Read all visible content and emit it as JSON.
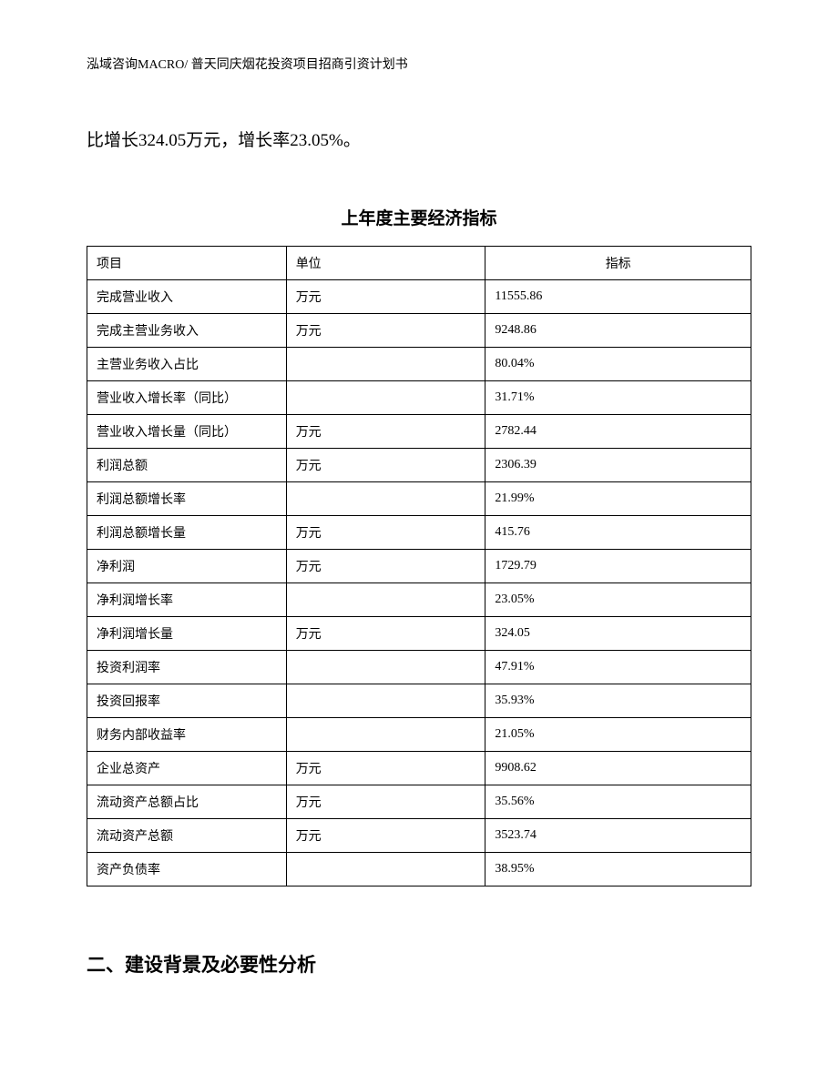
{
  "header": {
    "text": "泓域咨询MACRO/ 普天同庆烟花投资项目招商引资计划书"
  },
  "body_text": "比增长324.05万元，增长率23.05%。",
  "table": {
    "title": "上年度主要经济指标",
    "columns": [
      "项目",
      "单位",
      "指标"
    ],
    "rows": [
      {
        "item": "完成营业收入",
        "unit": "万元",
        "value": "11555.86"
      },
      {
        "item": "完成主营业务收入",
        "unit": "万元",
        "value": "9248.86"
      },
      {
        "item": "主营业务收入占比",
        "unit": "",
        "value": "80.04%"
      },
      {
        "item": "营业收入增长率（同比）",
        "unit": "",
        "value": "31.71%"
      },
      {
        "item": "营业收入增长量（同比）",
        "unit": "万元",
        "value": "2782.44"
      },
      {
        "item": "利润总额",
        "unit": "万元",
        "value": "2306.39"
      },
      {
        "item": "利润总额增长率",
        "unit": "",
        "value": "21.99%"
      },
      {
        "item": "利润总额增长量",
        "unit": "万元",
        "value": "415.76"
      },
      {
        "item": "净利润",
        "unit": "万元",
        "value": "1729.79"
      },
      {
        "item": "净利润增长率",
        "unit": "",
        "value": "23.05%"
      },
      {
        "item": "净利润增长量",
        "unit": "万元",
        "value": "324.05"
      },
      {
        "item": "投资利润率",
        "unit": "",
        "value": "47.91%"
      },
      {
        "item": "投资回报率",
        "unit": "",
        "value": "35.93%"
      },
      {
        "item": "财务内部收益率",
        "unit": "",
        "value": "21.05%"
      },
      {
        "item": "企业总资产",
        "unit": "万元",
        "value": "9908.62"
      },
      {
        "item": "流动资产总额占比",
        "unit": "万元",
        "value": "35.56%"
      },
      {
        "item": "流动资产总额",
        "unit": "万元",
        "value": "3523.74"
      },
      {
        "item": "资产负债率",
        "unit": "",
        "value": "38.95%"
      }
    ]
  },
  "section_heading": "二、建设背景及必要性分析"
}
